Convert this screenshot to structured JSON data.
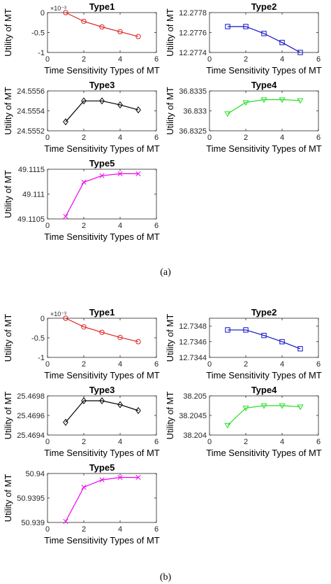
{
  "panels": [
    {
      "id": "a",
      "caption": "(a)"
    },
    {
      "id": "b",
      "caption": "(b)"
    }
  ],
  "chart_data": [
    {
      "panel": "a",
      "type": "line",
      "title": "Type1",
      "xlabel": "Time Sensitivity Types of MT",
      "ylabel": "Utility of MT",
      "color": "#e02020",
      "marker": "circle",
      "exponent_label": "×10⁻³",
      "x": [
        1,
        2,
        3,
        4,
        5
      ],
      "y": [
        0.0,
        -0.22,
        -0.36,
        -0.48,
        -0.6
      ],
      "xlim": [
        0,
        6
      ],
      "ylim": [
        -1,
        0
      ],
      "xticks": [
        0,
        2,
        4,
        6
      ],
      "xtick_labels": [
        "0",
        "2",
        "4",
        "6"
      ],
      "yticks": [
        0,
        -0.5,
        -1
      ],
      "ytick_labels": [
        "0",
        "-0.5",
        "-1"
      ]
    },
    {
      "panel": "a",
      "type": "line",
      "title": "Type2",
      "xlabel": "Time Sensitivity Types of MT",
      "ylabel": "Utility of MT",
      "color": "#1010c8",
      "marker": "square",
      "x": [
        1,
        2,
        3,
        4,
        5
      ],
      "y": [
        12.27766,
        12.27766,
        12.27759,
        12.2775,
        12.2774
      ],
      "xlim": [
        0,
        6
      ],
      "ylim": [
        12.2774,
        12.2778
      ],
      "xticks": [
        0,
        2,
        4,
        6
      ],
      "xtick_labels": [
        "0",
        "2",
        "4",
        "6"
      ],
      "yticks": [
        12.2778,
        12.2776,
        12.2774
      ],
      "ytick_labels": [
        "12.2778",
        "12.2776",
        "12.2774"
      ]
    },
    {
      "panel": "a",
      "type": "line",
      "title": "Type3",
      "xlabel": "Time Sensitivity Types of MT",
      "ylabel": "Utility of MT",
      "color": "#000000",
      "marker": "diamond",
      "x": [
        1,
        2,
        3,
        4,
        5
      ],
      "y": [
        24.55529,
        24.5555,
        24.5555,
        24.55546,
        24.55541
      ],
      "xlim": [
        0,
        6
      ],
      "ylim": [
        24.5552,
        24.5556
      ],
      "xticks": [
        0,
        2,
        4,
        6
      ],
      "xtick_labels": [
        "0",
        "2",
        "4",
        "6"
      ],
      "yticks": [
        24.5556,
        24.5554,
        24.5552
      ],
      "ytick_labels": [
        "24.5556",
        "24.5554",
        "24.5552"
      ]
    },
    {
      "panel": "a",
      "type": "line",
      "title": "Type4",
      "xlabel": "Time Sensitivity Types of MT",
      "ylabel": "Utility of MT",
      "color": "#22dd22",
      "marker": "triangle-down",
      "x": [
        1,
        2,
        3,
        4,
        5
      ],
      "y": [
        36.83293,
        36.83321,
        36.83328,
        36.83328,
        36.83326
      ],
      "xlim": [
        0,
        6
      ],
      "ylim": [
        36.8325,
        36.8335
      ],
      "xticks": [
        0,
        2,
        4,
        6
      ],
      "xtick_labels": [
        "0",
        "2",
        "4",
        "6"
      ],
      "yticks": [
        36.8335,
        36.833,
        36.8325
      ],
      "ytick_labels": [
        "36.8335",
        "36.833",
        "36.8325"
      ]
    },
    {
      "panel": "a",
      "type": "line",
      "title": "Type5",
      "xlabel": "Time Sensitivity Types of MT",
      "ylabel": "Utility of MT",
      "color": "#ee00ee",
      "marker": "x",
      "x": [
        1,
        2,
        3,
        4,
        5
      ],
      "y": [
        49.11055,
        49.11124,
        49.11137,
        49.11141,
        49.11141
      ],
      "xlim": [
        0,
        6
      ],
      "ylim": [
        49.1105,
        49.1115
      ],
      "xticks": [
        0,
        2,
        4,
        6
      ],
      "xtick_labels": [
        "0",
        "2",
        "4",
        "6"
      ],
      "yticks": [
        49.1115,
        49.111,
        49.1105
      ],
      "ytick_labels": [
        "49.1115",
        "49.111",
        "49.1105"
      ]
    },
    {
      "panel": "b",
      "type": "line",
      "title": "Type1",
      "xlabel": "Time Sensitivity Types of MT",
      "ylabel": "Utility of MT",
      "color": "#e02020",
      "marker": "circle",
      "exponent_label": "×10⁻³",
      "x": [
        1,
        2,
        3,
        4,
        5
      ],
      "y": [
        0.0,
        -0.22,
        -0.36,
        -0.49,
        -0.6
      ],
      "xlim": [
        0,
        6
      ],
      "ylim": [
        -1,
        0
      ],
      "xticks": [
        0,
        2,
        4,
        6
      ],
      "xtick_labels": [
        "0",
        "2",
        "4",
        "6"
      ],
      "yticks": [
        0,
        -0.5,
        -1
      ],
      "ytick_labels": [
        "0",
        "-0.5",
        "-1"
      ]
    },
    {
      "panel": "b",
      "type": "line",
      "title": "Type2",
      "xlabel": "Time Sensitivity Types of MT",
      "ylabel": "Utility of MT",
      "color": "#1010c8",
      "marker": "square",
      "x": [
        1,
        2,
        3,
        4,
        5
      ],
      "y": [
        12.73475,
        12.73475,
        12.73468,
        12.7346,
        12.73451
      ],
      "xlim": [
        0,
        6
      ],
      "ylim": [
        12.7344,
        12.7349
      ],
      "xticks": [
        0,
        2,
        4,
        6
      ],
      "xtick_labels": [
        "0",
        "2",
        "4",
        "6"
      ],
      "yticks": [
        12.7348,
        12.7346,
        12.7344
      ],
      "ytick_labels": [
        "12.7348",
        "12.7346",
        "12.7344"
      ]
    },
    {
      "panel": "b",
      "type": "line",
      "title": "Type3",
      "xlabel": "Time Sensitivity Types of MT",
      "ylabel": "Utility of MT",
      "color": "#000000",
      "marker": "diamond",
      "x": [
        1,
        2,
        3,
        4,
        5
      ],
      "y": [
        25.46953,
        25.46975,
        25.46975,
        25.46971,
        25.46965
      ],
      "xlim": [
        0,
        6
      ],
      "ylim": [
        25.4694,
        25.4698
      ],
      "xticks": [
        0,
        2,
        4,
        6
      ],
      "xtick_labels": [
        "0",
        "2",
        "4",
        "6"
      ],
      "yticks": [
        25.4698,
        25.4696,
        25.4694
      ],
      "ytick_labels": [
        "25.4698",
        "25.4696",
        "25.4694"
      ]
    },
    {
      "panel": "b",
      "type": "line",
      "title": "Type4",
      "xlabel": "Time Sensitivity Types of MT",
      "ylabel": "Utility of MT",
      "color": "#22dd22",
      "marker": "triangle-down",
      "x": [
        1,
        2,
        3,
        4,
        5
      ],
      "y": [
        38.20425,
        38.20469,
        38.20475,
        38.20475,
        38.20472
      ],
      "xlim": [
        0,
        6
      ],
      "ylim": [
        38.204,
        38.205
      ],
      "xticks": [
        0,
        2,
        4,
        6
      ],
      "xtick_labels": [
        "0",
        "2",
        "4",
        "6"
      ],
      "yticks": [
        38.205,
        38.2045,
        38.204
      ],
      "ytick_labels": [
        "38.205",
        "38.2045",
        "38.204"
      ]
    },
    {
      "panel": "b",
      "type": "line",
      "title": "Type5",
      "xlabel": "Time Sensitivity Types of MT",
      "ylabel": "Utility of MT",
      "color": "#ee00ee",
      "marker": "x",
      "x": [
        1,
        2,
        3,
        4,
        5
      ],
      "y": [
        50.93902,
        50.93972,
        50.93987,
        50.93992,
        50.93992
      ],
      "xlim": [
        0,
        6
      ],
      "ylim": [
        50.939,
        50.94
      ],
      "xticks": [
        0,
        2,
        4,
        6
      ],
      "xtick_labels": [
        "0",
        "2",
        "4",
        "6"
      ],
      "yticks": [
        50.94,
        50.9395,
        50.939
      ],
      "ytick_labels": [
        "50.94",
        "50.9395",
        "50.939"
      ]
    }
  ]
}
